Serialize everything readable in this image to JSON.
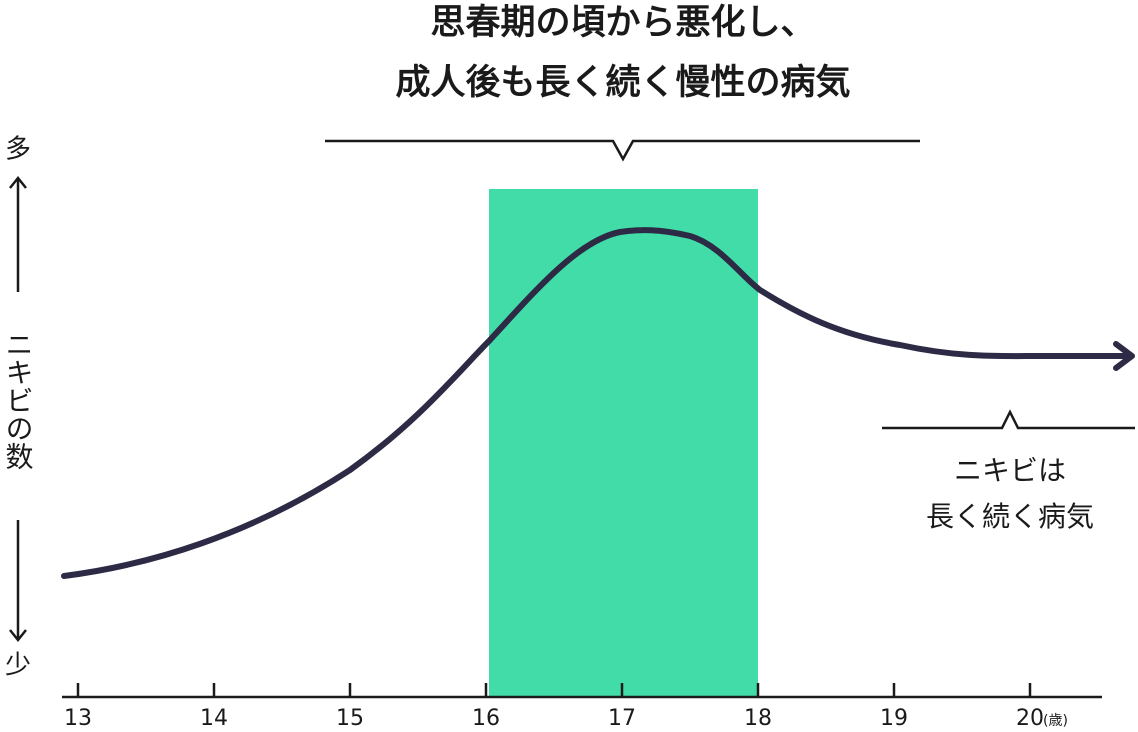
{
  "title": [
    "思春期の頃から悪化し、",
    "成人後も長く続く慢性の病気"
  ],
  "y_axis": {
    "label": "ニキビの数",
    "top": "多",
    "bottom": "少"
  },
  "x_axis": {
    "ticks": [
      "13",
      "14",
      "15",
      "16",
      "17",
      "18",
      "19",
      "20"
    ],
    "unit": "(歳)"
  },
  "annotation": [
    "ニキビは",
    "長く続く病気"
  ]
}
